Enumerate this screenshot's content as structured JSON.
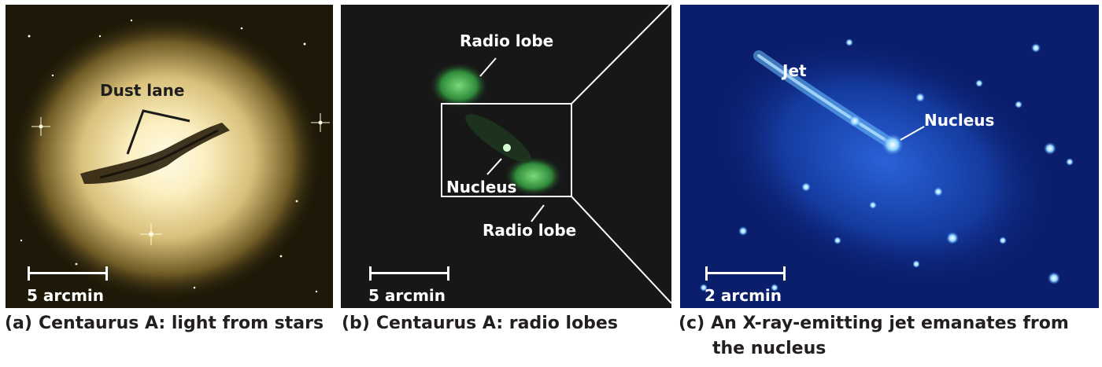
{
  "panel_a": {
    "label_dust": "Dust lane",
    "scale_text": "5 arcmin",
    "caption_letter": "(a)",
    "caption": "Centaurus A: light from stars"
  },
  "panel_b": {
    "label_lobe_top": "Radio lobe",
    "label_nucleus": "Nucleus",
    "label_lobe_bottom": "Radio lobe",
    "scale_text": "5 arcmin",
    "caption_letter": "(b)",
    "caption": "Centaurus A: radio lobes"
  },
  "panel_c": {
    "label_jet": "Jet",
    "label_nucleus": "Nucleus",
    "scale_text": "2 arcmin",
    "caption_letter": "(c)",
    "caption_line1": "An X-ray-emitting jet emanates from",
    "caption_line2": "the nucleus"
  }
}
